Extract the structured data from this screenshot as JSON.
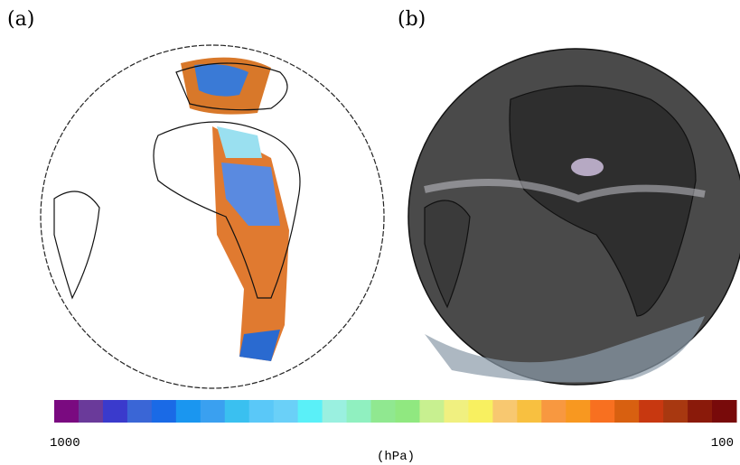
{
  "panels": [
    {
      "label": "(a)"
    },
    {
      "label": "(b)"
    }
  ],
  "colorbar": {
    "colors": [
      "#7a0a80",
      "#6a3a9a",
      "#3a3acc",
      "#3a66d6",
      "#1a6ae6",
      "#1a96f0",
      "#3aa0f0",
      "#3ac0f0",
      "#5ac8f8",
      "#6ad0f8",
      "#5af0f8",
      "#9af0e0",
      "#90f0c0",
      "#90e890",
      "#90e880",
      "#c8f090",
      "#f0f080",
      "#f8f060",
      "#f8c870",
      "#f8c040",
      "#f89840",
      "#f89820",
      "#f87020",
      "#d86010",
      "#c83810",
      "#a83810",
      "#8a1a0a",
      "#780a0a"
    ],
    "left_label": "1000",
    "right_label": "100",
    "unit": "(hPa)"
  }
}
